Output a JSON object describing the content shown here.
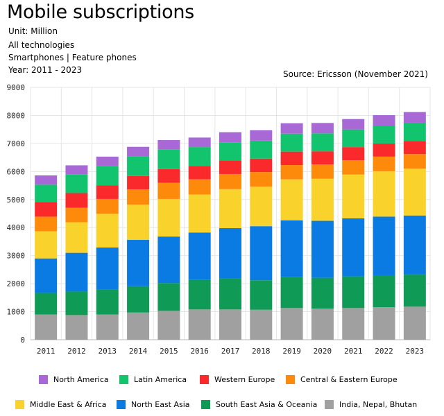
{
  "header": {
    "title": "Mobile subscriptions",
    "unit": "Unit: Million",
    "technology": "All technologies",
    "device": "Smartphones | Feature phones",
    "years": "Year: 2011 - 2023",
    "source": "Source: Ericsson (November 2021)"
  },
  "chart_data": {
    "type": "bar",
    "stacked": true,
    "title": "Mobile subscriptions",
    "xlabel": "",
    "ylabel": "",
    "ylim": [
      0,
      9000
    ],
    "yticks": [
      0,
      1000,
      2000,
      3000,
      4000,
      5000,
      6000,
      7000,
      8000,
      9000
    ],
    "grid": true,
    "legend_position": "bottom",
    "categories": [
      "2011",
      "2012",
      "2013",
      "2014",
      "2015",
      "2016",
      "2017",
      "2018",
      "2019",
      "2020",
      "2021",
      "2022",
      "2023"
    ],
    "series": [
      {
        "name": "India, Nepal, Bhutan",
        "color": "#a0a0a0",
        "values": [
          900,
          880,
          900,
          970,
          1030,
          1080,
          1080,
          1070,
          1130,
          1110,
          1130,
          1160,
          1180
        ]
      },
      {
        "name": "South East Asia & Oceania",
        "color": "#0f9a55",
        "values": [
          770,
          840,
          890,
          940,
          990,
          1050,
          1110,
          1050,
          1100,
          1100,
          1130,
          1140,
          1140
        ]
      },
      {
        "name": "North East Asia",
        "color": "#0a7be3",
        "values": [
          1230,
          1380,
          1500,
          1650,
          1660,
          1690,
          1790,
          1930,
          2030,
          2030,
          2070,
          2090,
          2110
        ]
      },
      {
        "name": "Middle East & Africa",
        "color": "#f9d22b",
        "values": [
          970,
          1090,
          1200,
          1260,
          1340,
          1360,
          1390,
          1410,
          1460,
          1500,
          1560,
          1620,
          1670
        ]
      },
      {
        "name": "Central & Eastern Europe",
        "color": "#fe8a0c",
        "values": [
          520,
          520,
          530,
          540,
          580,
          540,
          540,
          520,
          510,
          510,
          510,
          520,
          520
        ]
      },
      {
        "name": "Western Europe",
        "color": "#fa2a2c",
        "values": [
          520,
          520,
          490,
          480,
          490,
          480,
          480,
          480,
          480,
          470,
          470,
          470,
          470
        ]
      },
      {
        "name": "Latin America",
        "color": "#13c46f",
        "values": [
          620,
          660,
          680,
          690,
          690,
          670,
          650,
          640,
          640,
          640,
          630,
          640,
          650
        ]
      },
      {
        "name": "North America",
        "color": "#a868d6",
        "values": [
          330,
          330,
          340,
          350,
          340,
          340,
          360,
          370,
          370,
          370,
          370,
          370,
          380
        ]
      }
    ]
  },
  "legend": {
    "rows": [
      [
        "North America",
        "Latin America",
        "Western Europe",
        "Central & Eastern Europe"
      ],
      [
        "Middle East & Africa",
        "North East Asia",
        "South East Asia & Oceania",
        "India, Nepal, Bhutan"
      ]
    ]
  }
}
